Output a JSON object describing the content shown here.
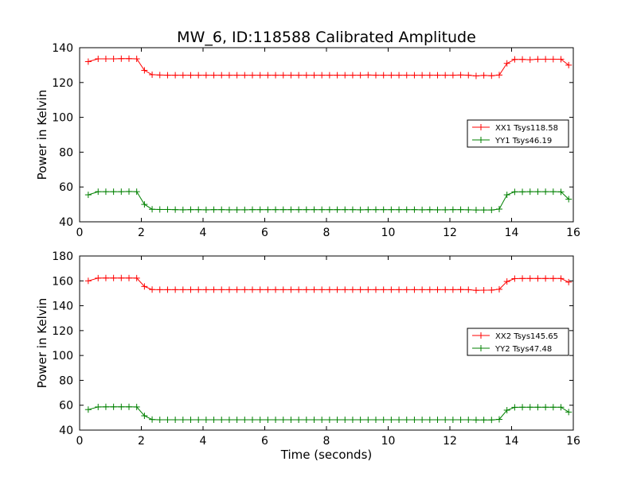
{
  "title": "MW_6, ID:118588 Calibrated Amplitude",
  "colors": {
    "red": "#ff0000",
    "green": "#008000"
  },
  "chart_data": [
    {
      "type": "line",
      "xlabel": "",
      "ylabel": "Power in Kelvin",
      "xlim": [
        0,
        16
      ],
      "ylim": [
        40,
        140
      ],
      "xticks": [
        "0",
        "2",
        "4",
        "6",
        "8",
        "10",
        "12",
        "14",
        "16"
      ],
      "yticks": [
        "40",
        "60",
        "80",
        "100",
        "120",
        "140"
      ],
      "legend_position": "center-right",
      "grid": false,
      "x": [
        0.28,
        0.6,
        0.85,
        1.1,
        1.35,
        1.6,
        1.85,
        2.1,
        2.35,
        2.6,
        2.85,
        3.1,
        3.35,
        3.6,
        3.85,
        4.1,
        4.35,
        4.6,
        4.85,
        5.1,
        5.35,
        5.6,
        5.85,
        6.1,
        6.35,
        6.6,
        6.85,
        7.1,
        7.35,
        7.6,
        7.85,
        8.1,
        8.35,
        8.6,
        8.85,
        9.1,
        9.35,
        9.6,
        9.85,
        10.1,
        10.35,
        10.6,
        10.85,
        11.1,
        11.35,
        11.6,
        11.85,
        12.1,
        12.35,
        12.6,
        12.85,
        13.1,
        13.35,
        13.6,
        13.85,
        14.1,
        14.35,
        14.6,
        14.85,
        15.1,
        15.35,
        15.6,
        15.85
      ],
      "series": [
        {
          "name": "XX1 Tsys118.58",
          "color": "#ff0000",
          "values": [
            132,
            133.6,
            133.6,
            133.6,
            133.7,
            133.7,
            133.6,
            127,
            124.5,
            124.3,
            124.2,
            124.2,
            124.2,
            124.2,
            124.2,
            124.2,
            124.2,
            124.2,
            124.2,
            124.2,
            124.2,
            124.2,
            124.2,
            124.2,
            124.2,
            124.2,
            124.2,
            124.2,
            124.2,
            124.2,
            124.2,
            124.2,
            124.2,
            124.2,
            124.2,
            124.2,
            124.3,
            124.2,
            124.2,
            124.2,
            124.2,
            124.2,
            124.2,
            124.2,
            124.2,
            124.2,
            124.2,
            124.2,
            124.3,
            124.2,
            123.8,
            124.1,
            123.9,
            124.3,
            131,
            133.3,
            133.3,
            133.1,
            133.4,
            133.4,
            133.4,
            133.4,
            130
          ]
        },
        {
          "name": "YY1 Tsys46.19",
          "color": "#008000",
          "values": [
            55.5,
            57.3,
            57.3,
            57.3,
            57.3,
            57.4,
            57.3,
            50,
            47.2,
            47.1,
            47.1,
            47,
            46.9,
            47,
            47,
            46.9,
            47,
            47,
            46.9,
            46.9,
            46.9,
            47,
            47,
            47,
            47,
            47,
            47,
            47,
            47,
            47,
            47,
            47,
            47,
            47,
            47,
            46.9,
            47,
            47,
            47,
            47,
            47,
            47,
            47,
            46.9,
            47,
            46.9,
            46.9,
            47,
            47,
            46.9,
            46.8,
            46.8,
            46.8,
            47.3,
            55.5,
            57.2,
            57.2,
            57.3,
            57.3,
            57.3,
            57.3,
            57.2,
            53
          ]
        }
      ]
    },
    {
      "type": "line",
      "xlabel": "Time (seconds)",
      "ylabel": "Power in Kelvin",
      "xlim": [
        0,
        16
      ],
      "ylim": [
        40,
        180
      ],
      "xticks": [
        "0",
        "2",
        "4",
        "6",
        "8",
        "10",
        "12",
        "14",
        "16"
      ],
      "yticks": [
        "40",
        "60",
        "80",
        "100",
        "120",
        "140",
        "160",
        "180"
      ],
      "legend_position": "center-right",
      "grid": false,
      "x": [
        0.28,
        0.6,
        0.85,
        1.1,
        1.35,
        1.6,
        1.85,
        2.1,
        2.35,
        2.6,
        2.85,
        3.1,
        3.35,
        3.6,
        3.85,
        4.1,
        4.35,
        4.6,
        4.85,
        5.1,
        5.35,
        5.6,
        5.85,
        6.1,
        6.35,
        6.6,
        6.85,
        7.1,
        7.35,
        7.6,
        7.85,
        8.1,
        8.35,
        8.6,
        8.85,
        9.1,
        9.35,
        9.6,
        9.85,
        10.1,
        10.35,
        10.6,
        10.85,
        11.1,
        11.35,
        11.6,
        11.85,
        12.1,
        12.35,
        12.6,
        12.85,
        13.1,
        13.35,
        13.6,
        13.85,
        14.1,
        14.35,
        14.6,
        14.85,
        15.1,
        15.35,
        15.6,
        15.85
      ],
      "series": [
        {
          "name": "XX2 Tsys145.65",
          "color": "#ff0000",
          "values": [
            160,
            162.2,
            162.3,
            162.3,
            162.3,
            162.3,
            162.2,
            155.5,
            153,
            152.9,
            152.9,
            152.9,
            152.9,
            152.9,
            152.9,
            152.9,
            152.9,
            152.9,
            152.9,
            152.9,
            152.9,
            152.9,
            152.9,
            152.9,
            152.9,
            152.9,
            152.9,
            152.9,
            152.9,
            152.9,
            152.9,
            152.9,
            152.9,
            152.9,
            152.9,
            152.9,
            152.9,
            152.9,
            152.9,
            152.9,
            152.9,
            152.9,
            152.9,
            152.9,
            152.9,
            152.9,
            152.9,
            152.9,
            153,
            152.9,
            152.4,
            152.5,
            152.6,
            153.2,
            159.5,
            161.8,
            161.9,
            161.9,
            161.9,
            161.9,
            161.9,
            161.9,
            159
          ]
        },
        {
          "name": "YY2 Tsys47.48",
          "color": "#008000",
          "values": [
            56.5,
            58.6,
            58.7,
            58.7,
            58.7,
            58.7,
            58.6,
            51.5,
            48.5,
            48.3,
            48.3,
            48.3,
            48.3,
            48.3,
            48.3,
            48.3,
            48.3,
            48.3,
            48.3,
            48.3,
            48.3,
            48.3,
            48.3,
            48.3,
            48.3,
            48.3,
            48.3,
            48.3,
            48.3,
            48.3,
            48.3,
            48.3,
            48.3,
            48.3,
            48.3,
            48.3,
            48.3,
            48.3,
            48.3,
            48.3,
            48.3,
            48.3,
            48.3,
            48.3,
            48.3,
            48.3,
            48.3,
            48.3,
            48.3,
            48.3,
            48.2,
            48.2,
            48.2,
            48.6,
            56,
            58.3,
            58.4,
            58.4,
            58.4,
            58.4,
            58.4,
            58.4,
            54.5
          ]
        }
      ]
    }
  ]
}
